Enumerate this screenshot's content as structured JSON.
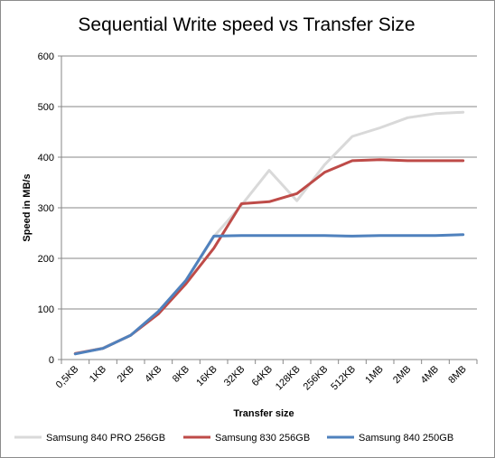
{
  "chart_data": {
    "type": "line",
    "title": "Sequential Write speed vs Transfer Size",
    "xlabel": "Transfer size",
    "ylabel": "Speed in MB/s",
    "categories": [
      "0,5KB",
      "1KB",
      "2KB",
      "4KB",
      "8KB",
      "16KB",
      "32KB",
      "64KB",
      "128KB",
      "256KB",
      "512KB",
      "1MB",
      "2MB",
      "4MB",
      "8MB"
    ],
    "ylim": [
      0,
      600
    ],
    "yticks": [
      "0",
      "100",
      "200",
      "300",
      "400",
      "500",
      "600"
    ],
    "grid": "horizontal",
    "legend_position": "bottom",
    "series": [
      {
        "name": "Samsung 840 PRO 256GB",
        "color": "#d9d9d9",
        "values": [
          12,
          23,
          48,
          95,
          155,
          243,
          305,
          374,
          314,
          385,
          441,
          458,
          478,
          486,
          489
        ]
      },
      {
        "name": "Samsung 830 256GB",
        "color": "#be4b48",
        "values": [
          12,
          22,
          48,
          90,
          150,
          220,
          308,
          312,
          328,
          370,
          393,
          395,
          393,
          393,
          393
        ]
      },
      {
        "name": "Samsung 840 250GB",
        "color": "#4f81bd",
        "values": [
          11,
          22,
          48,
          95,
          157,
          244,
          245,
          245,
          245,
          245,
          244,
          245,
          245,
          245,
          247
        ]
      }
    ]
  }
}
